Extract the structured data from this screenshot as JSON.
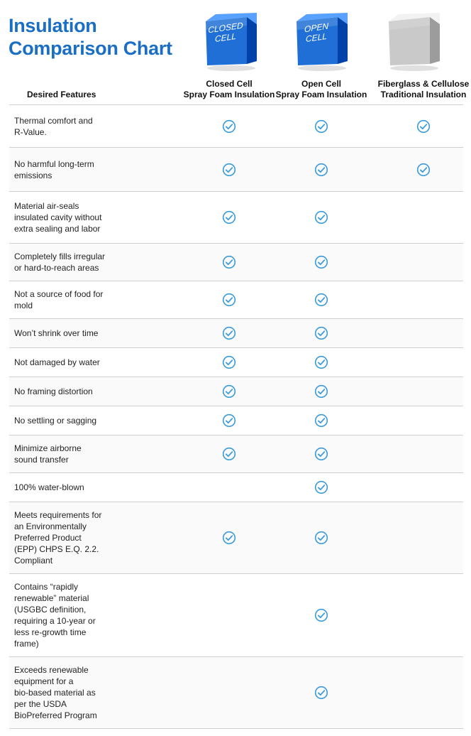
{
  "title": [
    "Insulation",
    "Comparison Chart"
  ],
  "cubes": [
    {
      "label": [
        "CLOSED",
        "CELL"
      ],
      "color": "#1f6fd6"
    },
    {
      "label": [
        "OPEN",
        "CELL"
      ],
      "color": "#1f6fd6"
    },
    {
      "label": [],
      "color": "#c9c9c9"
    }
  ],
  "feature_header": "Desired Features",
  "columns": [
    [
      "Closed Cell",
      "Spray Foam Insulation"
    ],
    [
      "Open Cell",
      "Spray Foam Insulation"
    ],
    [
      "Fiberglass & Cellulose",
      "Traditional Insulation"
    ]
  ],
  "check_color": "#3a9bd8",
  "chart_data": {
    "type": "table",
    "columns": [
      "Closed Cell Spray Foam Insulation",
      "Open Cell Spray Foam Insulation",
      "Fiberglass & Cellulose Traditional Insulation"
    ],
    "rows": [
      {
        "feature": [
          "Thermal comfort and",
          "R-Value."
        ],
        "checks": [
          true,
          true,
          true
        ]
      },
      {
        "feature": [
          "No harmful long-term",
          "emissions"
        ],
        "checks": [
          true,
          true,
          true
        ]
      },
      {
        "feature": [
          "Material air-seals",
          "insulated cavity without",
          "extra sealing and labor"
        ],
        "checks": [
          true,
          true,
          false
        ]
      },
      {
        "feature": [
          "Completely fills irregular",
          "or hard-to-reach areas"
        ],
        "checks": [
          true,
          true,
          false
        ]
      },
      {
        "feature": [
          "Not a source of food for",
          "mold"
        ],
        "checks": [
          true,
          true,
          false
        ]
      },
      {
        "feature": [
          "Won’t shrink over time"
        ],
        "checks": [
          true,
          true,
          false
        ]
      },
      {
        "feature": [
          "Not damaged by water"
        ],
        "checks": [
          true,
          true,
          false
        ]
      },
      {
        "feature": [
          "No framing distortion"
        ],
        "checks": [
          true,
          true,
          false
        ]
      },
      {
        "feature": [
          "No settling or sagging"
        ],
        "checks": [
          true,
          true,
          false
        ]
      },
      {
        "feature": [
          "Minimize airborne",
          "sound transfer"
        ],
        "checks": [
          true,
          true,
          false
        ]
      },
      {
        "feature": [
          "100% water-blown"
        ],
        "checks": [
          false,
          true,
          false
        ]
      },
      {
        "feature": [
          "Meets requirements for",
          "an Environmentally",
          "Preferred Product",
          "(EPP) CHPS E.Q. 2.2.",
          "Compliant"
        ],
        "checks": [
          true,
          true,
          false
        ]
      },
      {
        "feature": [
          "Contains “rapidly",
          "renewable” material",
          "(USGBC definition,",
          "requiring a 10-year or",
          "less re-growth time",
          "frame)"
        ],
        "checks": [
          false,
          true,
          false
        ]
      },
      {
        "feature": [
          "Exceeds renewable",
          "equipment for a",
          "bio-based material as",
          "per the USDA",
          "BioPreferred Program"
        ],
        "checks": [
          false,
          true,
          false
        ]
      }
    ]
  }
}
